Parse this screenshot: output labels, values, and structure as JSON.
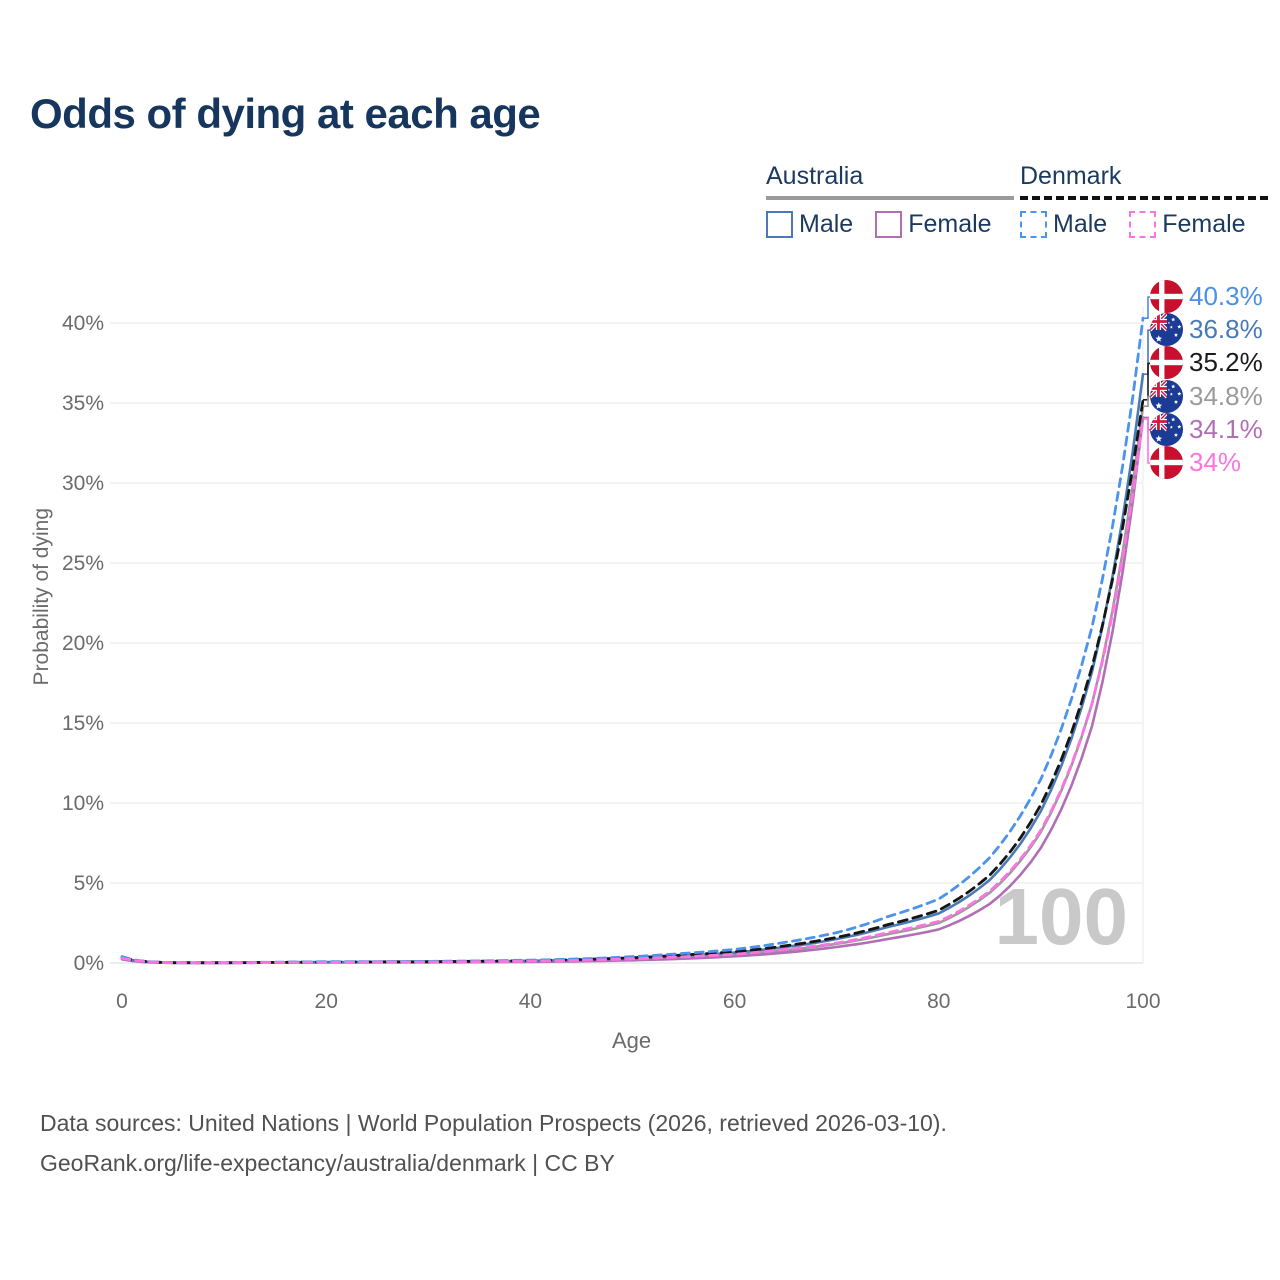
{
  "title": "Odds of dying at each age",
  "legend": {
    "groups": [
      {
        "label": "Australia",
        "underline_style": "solid",
        "underline_color": "#9a9a9a",
        "items": [
          {
            "label": "Male",
            "color": "#4a7ab5",
            "dash": "solid"
          },
          {
            "label": "Female",
            "color": "#b06fb5",
            "dash": "solid"
          }
        ]
      },
      {
        "label": "Denmark",
        "underline_style": "dashed",
        "underline_color": "#111111",
        "items": [
          {
            "label": "Male",
            "color": "#4b93ec",
            "dash": "dashed"
          },
          {
            "label": "Female",
            "color": "#fb74e0",
            "dash": "dashed"
          }
        ]
      }
    ]
  },
  "chart_data": {
    "type": "line",
    "title": "Odds of dying at each age",
    "xlabel": "Age",
    "ylabel": "Probability of dying",
    "xlim": [
      0,
      100
    ],
    "ylim": [
      0,
      42
    ],
    "grid": "horizontal",
    "x_ticks": [
      0,
      20,
      40,
      60,
      80,
      100
    ],
    "y_ticks": [
      {
        "label": "0%",
        "value": 0
      },
      {
        "label": "5%",
        "value": 5
      },
      {
        "label": "10%",
        "value": 10
      },
      {
        "label": "15%",
        "value": 15
      },
      {
        "label": "20%",
        "value": 20
      },
      {
        "label": "25%",
        "value": 25
      },
      {
        "label": "30%",
        "value": 30
      },
      {
        "label": "35%",
        "value": 35
      },
      {
        "label": "40%",
        "value": 40
      }
    ],
    "ages": [
      0,
      5,
      10,
      15,
      20,
      25,
      30,
      35,
      40,
      45,
      50,
      55,
      60,
      65,
      70,
      75,
      80,
      85,
      90,
      95,
      100
    ],
    "series": [
      {
        "id": "australia-total",
        "name": "Australia (both)",
        "color": "#9a9a9a",
        "dash": "solid",
        "values": [
          0.26,
          0.01,
          0.01,
          0.03,
          0.04,
          0.05,
          0.06,
          0.08,
          0.11,
          0.15,
          0.24,
          0.36,
          0.52,
          0.8,
          1.2,
          1.8,
          2.5,
          4.4,
          8.2,
          16.2,
          34.8
        ]
      },
      {
        "id": "australia-female",
        "name": "Australia Female",
        "color": "#b06fb5",
        "dash": "solid",
        "values": [
          0.23,
          0.01,
          0.01,
          0.02,
          0.03,
          0.03,
          0.04,
          0.05,
          0.07,
          0.11,
          0.17,
          0.27,
          0.42,
          0.65,
          1.0,
          1.5,
          2.1,
          3.7,
          7.2,
          14.8,
          34.1
        ]
      },
      {
        "id": "australia-male",
        "name": "Australia Male",
        "color": "#4a7ab5",
        "dash": "solid",
        "values": [
          0.3,
          0.02,
          0.01,
          0.04,
          0.06,
          0.07,
          0.08,
          0.1,
          0.14,
          0.2,
          0.3,
          0.46,
          0.65,
          1.0,
          1.5,
          2.25,
          3.1,
          5.2,
          9.5,
          18.2,
          36.8
        ]
      },
      {
        "id": "denmark-total",
        "name": "Denmark (both)",
        "color": "#151515",
        "dash": "dashed",
        "values": [
          0.35,
          0.02,
          0.02,
          0.04,
          0.06,
          0.07,
          0.08,
          0.11,
          0.15,
          0.22,
          0.33,
          0.5,
          0.7,
          1.08,
          1.6,
          2.4,
          3.3,
          5.5,
          9.9,
          18.5,
          35.2
        ]
      },
      {
        "id": "denmark-male",
        "name": "Denmark Male",
        "color": "#4b93ec",
        "dash": "dashed",
        "values": [
          0.4,
          0.02,
          0.02,
          0.05,
          0.08,
          0.09,
          0.1,
          0.13,
          0.18,
          0.26,
          0.4,
          0.6,
          0.85,
          1.3,
          1.9,
          2.9,
          4.0,
          6.6,
          11.5,
          21.0,
          40.3
        ]
      },
      {
        "id": "denmark-female",
        "name": "Denmark Female",
        "color": "#fb74e0",
        "dash": "dashed",
        "values": [
          0.3,
          0.02,
          0.01,
          0.03,
          0.04,
          0.05,
          0.06,
          0.08,
          0.11,
          0.17,
          0.26,
          0.39,
          0.55,
          0.85,
          1.25,
          1.9,
          2.6,
          4.5,
          8.3,
          16.2,
          34.0
        ]
      }
    ],
    "end_labels": [
      {
        "series": "denmark-male",
        "flag": "denmark",
        "text": "40.3%",
        "color": "#4a90e8",
        "value": 40.3
      },
      {
        "series": "australia-male",
        "flag": "australia",
        "text": "36.8%",
        "color": "#4a7ab5",
        "value": 36.8
      },
      {
        "series": "denmark-total",
        "flag": "denmark",
        "text": "35.2%",
        "color": "#1a1a1a",
        "value": 35.2
      },
      {
        "series": "australia-total",
        "flag": "australia",
        "text": "34.8%",
        "color": "#9a9a9a",
        "value": 34.8
      },
      {
        "series": "australia-female",
        "flag": "australia",
        "text": "34.1%",
        "color": "#b06fb5",
        "value": 34.1
      },
      {
        "series": "denmark-female",
        "flag": "denmark",
        "text": "34%",
        "color": "#fb74e0",
        "value": 34.0
      }
    ],
    "watermark": "100",
    "colors": {
      "grid": "#ececec",
      "axis_text": "#6b6b6b",
      "watermark": "#c9c9c9",
      "flag_denmark_red": "#c8102e",
      "flag_australia_blue": "#1c3b94",
      "flag_red": "#d1173c"
    }
  },
  "footer": {
    "line1": "Data sources: United Nations | World Population Prospects (2026, retrieved 2026-03-10).",
    "line2": "GeoRank.org/life-expectancy/australia/denmark | CC BY"
  }
}
